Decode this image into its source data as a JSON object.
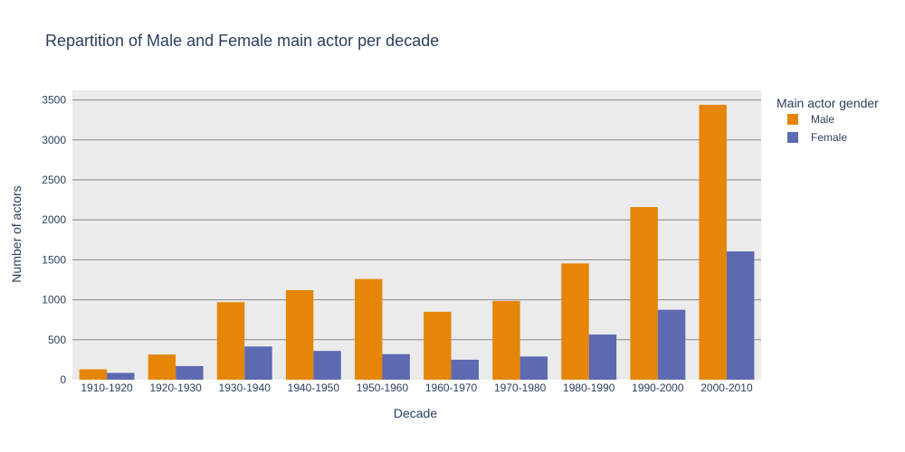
{
  "chart_data": {
    "type": "bar",
    "title": "Repartition of Male and Female main actor per decade",
    "xlabel": "Decade",
    "ylabel": "Number of actors",
    "categories": [
      "1910-1920",
      "1920-1930",
      "1930-1940",
      "1940-1950",
      "1950-1960",
      "1960-1970",
      "1970-1980",
      "1980-1990",
      "1990-2000",
      "2000-2010"
    ],
    "series": [
      {
        "name": "Male",
        "color": "#E58606",
        "values": [
          130,
          315,
          970,
          1120,
          1260,
          850,
          985,
          1455,
          2160,
          3440
        ]
      },
      {
        "name": "Female",
        "color": "#5D69B1",
        "values": [
          85,
          170,
          415,
          360,
          320,
          250,
          290,
          565,
          875,
          1605
        ]
      }
    ],
    "ylim": [
      0,
      3620
    ],
    "yticks": [
      0,
      500,
      1000,
      1500,
      2000,
      2500,
      3000,
      3500
    ],
    "ytick_labels": [
      "0",
      "500",
      "1000",
      "1500",
      "2000",
      "2500",
      "3000",
      "3500"
    ],
    "legend_title": "Main actor gender",
    "legend_position": "top-right",
    "grid": true,
    "plot_background": "#EBEBEB",
    "grid_color": "#8a8a8a"
  }
}
